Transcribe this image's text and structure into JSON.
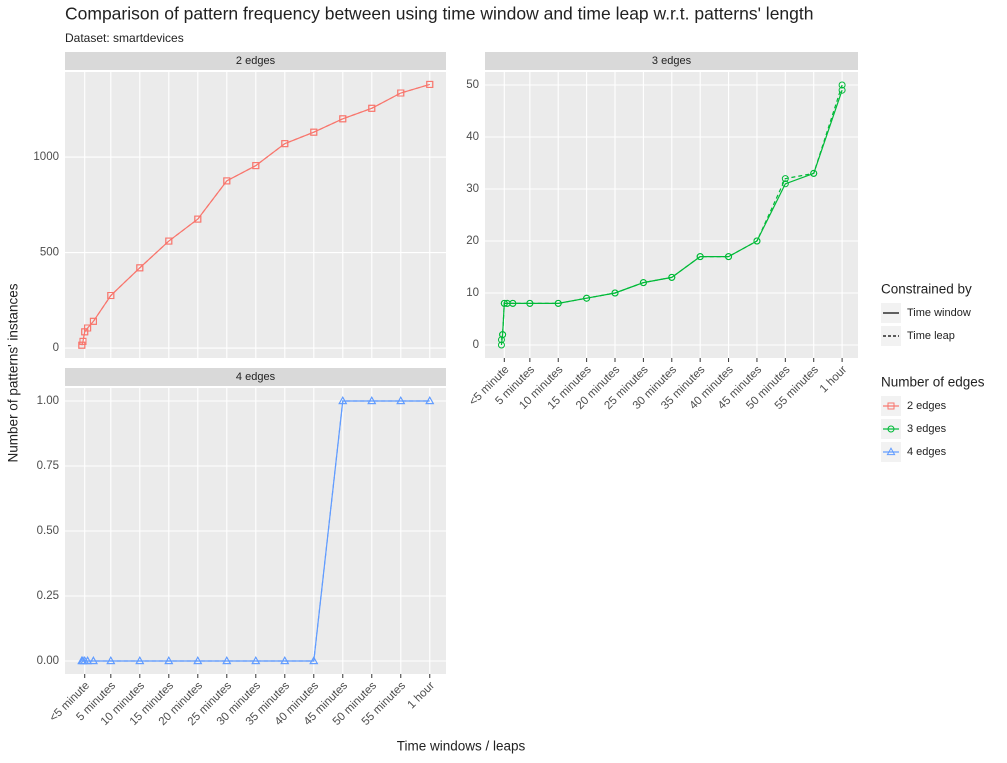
{
  "title": "Comparison of pattern frequency between using time window and time leap w.r.t. patterns' length",
  "subtitle": "Dataset: smartdevices",
  "x_label": "Time windows / leaps",
  "y_label": "Number of patterns' instances",
  "legend_titles": [
    "Constrained by",
    "Number of edges"
  ],
  "chart_data": [
    {
      "type": "line",
      "title": "2 edges",
      "color": "#f8766d",
      "marker": "square",
      "x": [
        0,
        0.2,
        0.5,
        1,
        2,
        5,
        10,
        15,
        20,
        25,
        30,
        35,
        40,
        45,
        50,
        55,
        60
      ],
      "series": [
        {
          "name": "Time window",
          "linetype": "solid",
          "values": [
            15,
            35,
            85,
            105,
            140,
            275,
            420,
            560,
            675,
            875,
            955,
            1070,
            1130,
            1200,
            1255,
            1335,
            1380
          ]
        },
        {
          "name": "Time leap",
          "linetype": "dashed",
          "values": [
            15,
            35,
            85,
            105,
            140,
            275,
            420,
            560,
            675,
            875,
            955,
            1070,
            1130,
            1200,
            1255,
            1335,
            1380
          ]
        }
      ],
      "xlim": [
        -2.9,
        62.8
      ],
      "ylim": [
        -52,
        1445
      ],
      "yticks": [
        0,
        500,
        1000
      ],
      "xticks": [
        {
          "value": 0.5,
          "label": "<5 minute"
        },
        {
          "value": 5,
          "label": "5 minutes"
        },
        {
          "value": 10,
          "label": "10 minutes"
        },
        {
          "value": 15,
          "label": "15 minutes"
        },
        {
          "value": 20,
          "label": "20 minutes"
        },
        {
          "value": 25,
          "label": "25 minutes"
        },
        {
          "value": 30,
          "label": "30 minutes"
        },
        {
          "value": 35,
          "label": "35 minutes"
        },
        {
          "value": 40,
          "label": "40 minutes"
        },
        {
          "value": 45,
          "label": "45 minutes"
        },
        {
          "value": 50,
          "label": "50 minutes"
        },
        {
          "value": 55,
          "label": "55 minutes"
        },
        {
          "value": 60,
          "label": "1 hour"
        }
      ]
    },
    {
      "type": "line",
      "title": "3 edges",
      "color": "#00ba38",
      "marker": "circle",
      "x": [
        0,
        0.2,
        0.5,
        1,
        2,
        5,
        10,
        15,
        20,
        25,
        30,
        35,
        40,
        45,
        50,
        55,
        60
      ],
      "series": [
        {
          "name": "Time window",
          "linetype": "solid",
          "values": [
            0,
            2,
            8,
            8,
            8,
            8,
            8,
            9,
            10,
            12,
            13,
            17,
            17,
            20,
            31,
            33,
            49
          ]
        },
        {
          "name": "Time leap",
          "linetype": "dashed",
          "values": [
            1,
            2,
            8,
            8,
            8,
            8,
            8,
            9,
            10,
            12,
            13,
            17,
            17,
            20,
            32,
            33,
            50
          ]
        }
      ],
      "xlim": [
        -2.9,
        62.8
      ],
      "ylim": [
        -2.5,
        52.5
      ],
      "yticks": [
        0,
        10,
        20,
        30,
        40,
        50
      ],
      "xticks": [
        {
          "value": 0.5,
          "label": "<5 minute"
        },
        {
          "value": 5,
          "label": "5 minutes"
        },
        {
          "value": 10,
          "label": "10 minutes"
        },
        {
          "value": 15,
          "label": "15 minutes"
        },
        {
          "value": 20,
          "label": "20 minutes"
        },
        {
          "value": 25,
          "label": "25 minutes"
        },
        {
          "value": 30,
          "label": "30 minutes"
        },
        {
          "value": 35,
          "label": "35 minutes"
        },
        {
          "value": 40,
          "label": "40 minutes"
        },
        {
          "value": 45,
          "label": "45 minutes"
        },
        {
          "value": 50,
          "label": "50 minutes"
        },
        {
          "value": 55,
          "label": "55 minutes"
        },
        {
          "value": 60,
          "label": "1 hour"
        }
      ]
    },
    {
      "type": "line",
      "title": "4 edges",
      "color": "#619cff",
      "marker": "triangle",
      "x": [
        0,
        0.2,
        0.5,
        1,
        2,
        5,
        10,
        15,
        20,
        25,
        30,
        35,
        40,
        45,
        50,
        55,
        60
      ],
      "series": [
        {
          "name": "Time window",
          "linetype": "solid",
          "values": [
            0,
            0,
            0,
            0,
            0,
            0,
            0,
            0,
            0,
            0,
            0,
            0,
            0,
            1,
            1,
            1,
            1
          ]
        },
        {
          "name": "Time leap",
          "linetype": "dashed",
          "values": [
            0,
            0,
            0,
            0,
            0,
            0,
            0,
            0,
            0,
            0,
            0,
            0,
            0,
            1,
            1,
            1,
            1
          ]
        }
      ],
      "xlim": [
        -2.9,
        62.8
      ],
      "ylim": [
        -0.05,
        1.05
      ],
      "yticks": [
        {
          "value": 0,
          "label": "0.00"
        },
        {
          "value": 0.25,
          "label": "0.25"
        },
        {
          "value": 0.5,
          "label": "0.50"
        },
        {
          "value": 0.75,
          "label": "0.75"
        },
        {
          "value": 1,
          "label": "1.00"
        }
      ],
      "xticks": [
        {
          "value": 0.5,
          "label": "<5 minute"
        },
        {
          "value": 5,
          "label": "5 minutes"
        },
        {
          "value": 10,
          "label": "10 minutes"
        },
        {
          "value": 15,
          "label": "15 minutes"
        },
        {
          "value": 20,
          "label": "20 minutes"
        },
        {
          "value": 25,
          "label": "25 minutes"
        },
        {
          "value": 30,
          "label": "30 minutes"
        },
        {
          "value": 35,
          "label": "35 minutes"
        },
        {
          "value": 40,
          "label": "40 minutes"
        },
        {
          "value": 45,
          "label": "45 minutes"
        },
        {
          "value": 50,
          "label": "50 minutes"
        },
        {
          "value": 55,
          "label": "55 minutes"
        },
        {
          "value": 60,
          "label": "1 hour"
        }
      ]
    }
  ]
}
